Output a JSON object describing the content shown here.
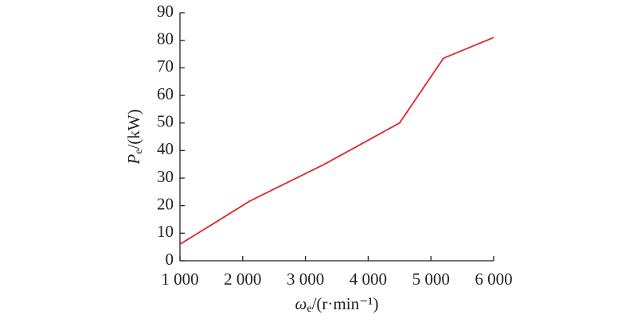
{
  "chart_data": {
    "type": "line",
    "x_label": {
      "symbol": "ω",
      "subscript": "e",
      "unit": "/(r·min⁻¹)"
    },
    "y_label": {
      "symbol": "P",
      "subscript": "e",
      "unit": "/(kW)"
    },
    "x": [
      1000,
      1500,
      2100,
      3300,
      4500,
      5200,
      6000
    ],
    "series": [
      {
        "color": "#e0262d",
        "values": [
          6,
          13,
          21.5,
          35,
          50,
          73.5,
          81
        ]
      }
    ],
    "xlim": [
      1000,
      6000
    ],
    "xticks": [
      {
        "value": 1000,
        "label": "1 000"
      },
      {
        "value": 2000,
        "label": "2 000"
      },
      {
        "value": 3000,
        "label": "3 000"
      },
      {
        "value": 4000,
        "label": "4 000"
      },
      {
        "value": 5000,
        "label": "5 000"
      },
      {
        "value": 6000,
        "label": "6 000"
      }
    ],
    "ylim": [
      0,
      90
    ],
    "yticks": [
      0,
      10,
      20,
      30,
      40,
      50,
      60,
      70,
      80,
      90
    ],
    "grid": false
  }
}
